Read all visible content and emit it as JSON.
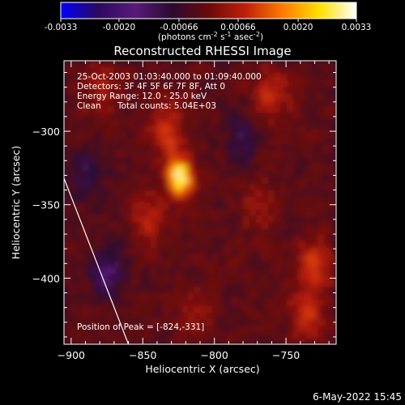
{
  "colors": {
    "background": "#000000",
    "foreground": "#ffffff",
    "colormap": [
      "#0000ff",
      "#2a0a5e",
      "#5a1a7a",
      "#2a0a30",
      "#6a0a0a",
      "#c0200a",
      "#ff7a00",
      "#ffe000",
      "#ffffff"
    ]
  },
  "colorbar": {
    "tick_labels": [
      "-0.0033",
      "-0.0020",
      "-0.00066",
      "0.00066",
      "0.0020",
      "0.0033"
    ],
    "tick_values": [
      -0.0033,
      -0.002,
      -0.00066,
      0.00066,
      0.002,
      0.0033
    ],
    "range": [
      -0.0033,
      0.0033
    ],
    "units_main": "(photons cm",
    "units_exp1": "-2",
    "units_mid": " s",
    "units_exp2": "-1",
    "units_mid2": " asec",
    "units_exp3": "-2",
    "units_end": ")"
  },
  "chart_data": {
    "type": "heatmap",
    "title": "Reconstructed RHESSI Image",
    "xlabel": "Heliocentric X (arcsec)",
    "ylabel": "Heliocentric Y (arcsec)",
    "xlim": [
      -905,
      -715
    ],
    "ylim": [
      -445,
      -252
    ],
    "x_ticks": [
      -900,
      -850,
      -800,
      -750
    ],
    "x_tick_labels": [
      "−900",
      "−850",
      "−800",
      "−750"
    ],
    "y_ticks": [
      -300,
      -350,
      -400
    ],
    "y_tick_labels": [
      "−300",
      "−350",
      "−400"
    ],
    "value_range": [
      -0.0033,
      0.0033
    ],
    "sources": [
      {
        "x": -824,
        "y": -331,
        "value": 0.0033
      },
      {
        "x": -832,
        "y": -300,
        "value": 0.0012
      },
      {
        "x": -845,
        "y": -360,
        "value": 0.0009
      },
      {
        "x": -760,
        "y": -275,
        "value": 0.0011
      },
      {
        "x": -730,
        "y": -390,
        "value": 0.0012
      },
      {
        "x": -735,
        "y": -425,
        "value": 0.001
      },
      {
        "x": -880,
        "y": -270,
        "value": 0.0007
      },
      {
        "x": -815,
        "y": -425,
        "value": 0.0006
      },
      {
        "x": -770,
        "y": -350,
        "value": 0.0006
      },
      {
        "x": -875,
        "y": -395,
        "value": -0.0012
      },
      {
        "x": -780,
        "y": -305,
        "value": -0.0009
      },
      {
        "x": -890,
        "y": -330,
        "value": -0.0008
      }
    ],
    "limb_line": [
      [
        -905,
        -332
      ],
      [
        -860,
        -445
      ]
    ],
    "annotations": {
      "time_range": "25-Oct-2003 01:03:40.000 to 01:09:40.000",
      "detectors": "Detectors: 3F 4F 5F 6F 7F 8F, Att 0",
      "energy": "Energy Range: 12.0 - 25.0 keV",
      "algorithm": "Clean",
      "counts": "Total counts: 5.04E+03",
      "peak": "Position of Peak = [-824,-331]"
    }
  },
  "footer": {
    "timestamp": "6-May-2022 15:45"
  }
}
